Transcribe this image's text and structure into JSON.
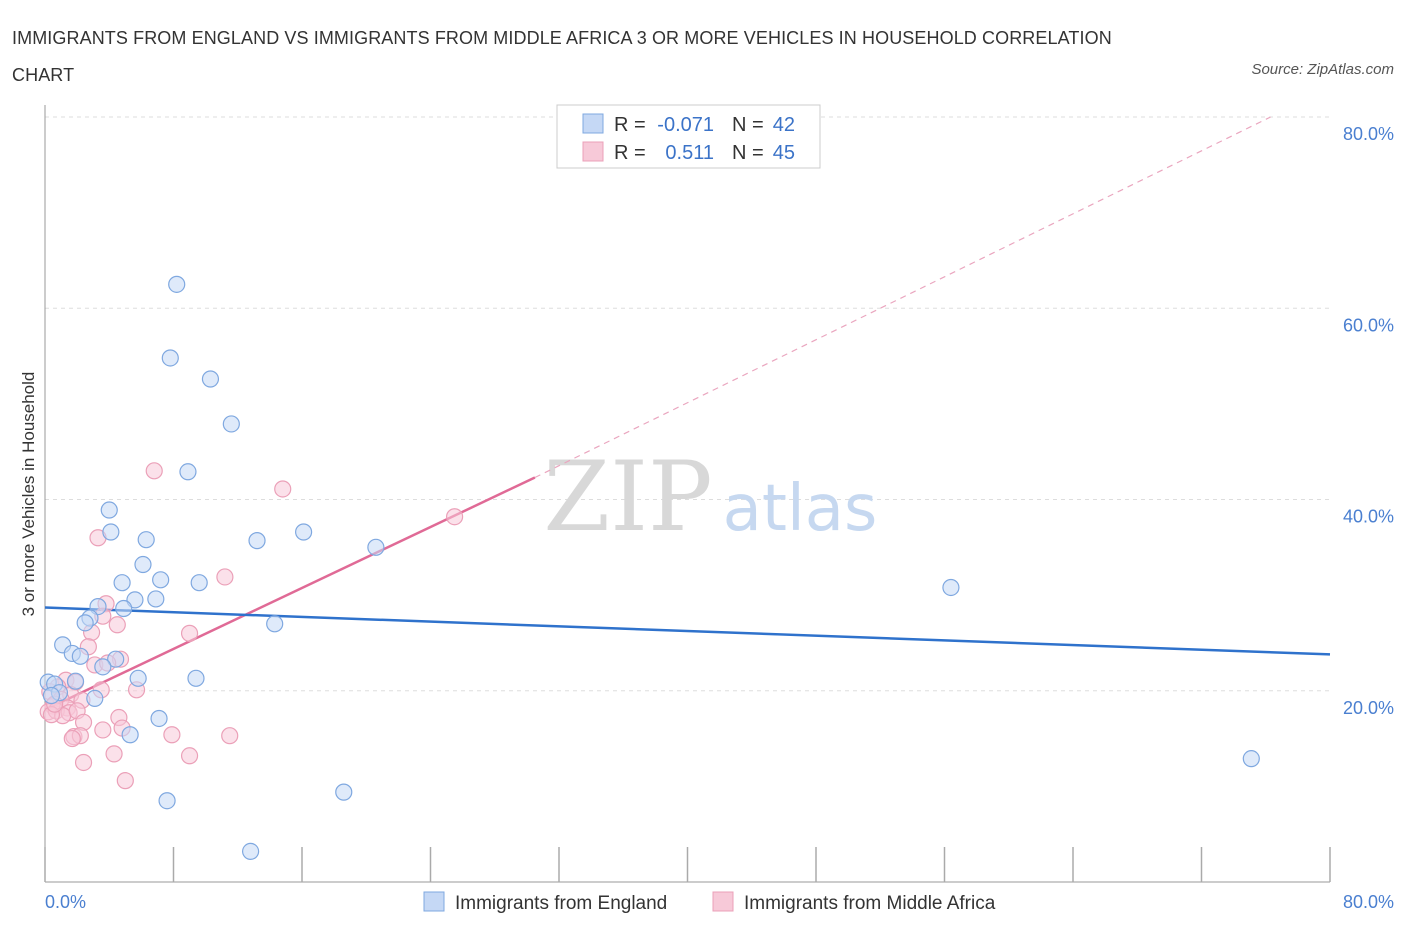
{
  "title": "IMMIGRANTS FROM ENGLAND VS IMMIGRANTS FROM MIDDLE AFRICA 3 OR MORE VEHICLES IN HOUSEHOLD CORRELATION CHART",
  "source": "Source: ZipAtlas.com",
  "watermark": {
    "zip": "ZIP",
    "atlas": "atlas"
  },
  "colors": {
    "england_fill": "#c5d8f5",
    "england_stroke": "#7fa8e0",
    "england_line": "#2f72cc",
    "africa_fill": "#f7c9d8",
    "africa_stroke": "#eba0b8",
    "africa_line": "#e06a96",
    "tick_label": "#4a7fd0",
    "grid": "#dddddd"
  },
  "legend": {
    "england": {
      "r_label": "R =",
      "r_value": "-0.071",
      "n_label": "N =",
      "n_value": "42"
    },
    "africa": {
      "r_label": "R =",
      "r_value": "0.511",
      "n_label": "N =",
      "n_value": "45"
    }
  },
  "bottom_legend": {
    "england": "Immigrants from England",
    "africa": "Immigrants from Middle Africa"
  },
  "chart_data": {
    "type": "scatter",
    "title": "IMMIGRANTS FROM ENGLAND VS IMMIGRANTS FROM MIDDLE AFRICA 3 OR MORE VEHICLES IN HOUSEHOLD CORRELATION CHART",
    "xlabel": "",
    "ylabel": "3 or more Vehicles in Household",
    "xlim": [
      0,
      80
    ],
    "ylim": [
      0,
      80
    ],
    "x_tick_labels": [
      "0.0%",
      "80.0%"
    ],
    "y_ticks": [
      20,
      40,
      60,
      80
    ],
    "y_tick_labels": [
      "20.0%",
      "40.0%",
      "60.0%",
      "80.0%"
    ],
    "series": [
      {
        "name": "Immigrants from England",
        "R": -0.071,
        "N": 42,
        "points": [
          [
            8.2,
            62.5
          ],
          [
            7.8,
            54.8
          ],
          [
            10.3,
            52.6
          ],
          [
            11.6,
            47.9
          ],
          [
            8.9,
            42.9
          ],
          [
            4.0,
            38.9
          ],
          [
            4.1,
            36.6
          ],
          [
            6.3,
            35.8
          ],
          [
            13.2,
            35.7
          ],
          [
            16.1,
            36.6
          ],
          [
            20.6,
            35.0
          ],
          [
            6.1,
            33.2
          ],
          [
            4.8,
            31.3
          ],
          [
            7.2,
            31.6
          ],
          [
            9.6,
            31.3
          ],
          [
            5.6,
            29.5
          ],
          [
            6.9,
            29.6
          ],
          [
            3.3,
            28.8
          ],
          [
            4.9,
            28.6
          ],
          [
            2.8,
            27.6
          ],
          [
            2.5,
            27.1
          ],
          [
            14.3,
            27.0
          ],
          [
            1.1,
            24.8
          ],
          [
            1.7,
            23.9
          ],
          [
            2.2,
            23.6
          ],
          [
            4.4,
            23.3
          ],
          [
            3.6,
            22.5
          ],
          [
            5.8,
            21.3
          ],
          [
            9.4,
            21.3
          ],
          [
            0.2,
            20.9
          ],
          [
            0.6,
            20.7
          ],
          [
            1.9,
            21.0
          ],
          [
            0.9,
            19.8
          ],
          [
            3.1,
            19.2
          ],
          [
            7.1,
            17.1
          ],
          [
            5.3,
            15.4
          ],
          [
            7.6,
            8.5
          ],
          [
            18.6,
            9.4
          ],
          [
            12.8,
            3.2
          ],
          [
            56.4,
            30.8
          ],
          [
            75.1,
            12.9
          ],
          [
            0.4,
            19.5
          ]
        ],
        "trend": {
          "x": [
            0,
            80
          ],
          "y": [
            28.7,
            23.8
          ],
          "style": "solid"
        }
      },
      {
        "name": "Immigrants from Middle Africa",
        "R": 0.511,
        "N": 45,
        "points": [
          [
            6.8,
            43.0
          ],
          [
            14.8,
            41.1
          ],
          [
            25.5,
            38.2
          ],
          [
            3.3,
            36.0
          ],
          [
            11.2,
            31.9
          ],
          [
            3.8,
            29.1
          ],
          [
            3.6,
            27.8
          ],
          [
            4.5,
            26.9
          ],
          [
            2.9,
            26.1
          ],
          [
            9.0,
            26.0
          ],
          [
            2.7,
            24.6
          ],
          [
            4.7,
            23.3
          ],
          [
            3.1,
            22.7
          ],
          [
            3.9,
            22.9
          ],
          [
            1.3,
            21.1
          ],
          [
            1.9,
            20.9
          ],
          [
            0.8,
            20.4
          ],
          [
            3.5,
            20.1
          ],
          [
            5.7,
            20.1
          ],
          [
            0.3,
            19.9
          ],
          [
            1.6,
            19.6
          ],
          [
            2.3,
            19.0
          ],
          [
            1.0,
            19.1
          ],
          [
            0.5,
            18.4
          ],
          [
            1.4,
            18.2
          ],
          [
            0.2,
            17.8
          ],
          [
            0.7,
            17.9
          ],
          [
            1.5,
            17.7
          ],
          [
            1.1,
            17.4
          ],
          [
            2.0,
            17.9
          ],
          [
            0.4,
            17.5
          ],
          [
            4.6,
            17.2
          ],
          [
            2.4,
            16.7
          ],
          [
            4.8,
            16.1
          ],
          [
            3.6,
            15.9
          ],
          [
            1.8,
            15.2
          ],
          [
            2.2,
            15.3
          ],
          [
            1.7,
            15.0
          ],
          [
            7.9,
            15.4
          ],
          [
            11.5,
            15.3
          ],
          [
            4.3,
            13.4
          ],
          [
            9.0,
            13.2
          ],
          [
            2.4,
            12.5
          ],
          [
            5.0,
            10.6
          ],
          [
            0.6,
            18.6
          ]
        ],
        "trend": {
          "x": [
            0,
            30.5
          ],
          "y": [
            18.0,
            42.3
          ],
          "style": "solid"
        },
        "trend_extension": {
          "x": [
            30.5,
            76.3
          ],
          "y": [
            42.3,
            80.0
          ],
          "style": "dashed"
        }
      }
    ]
  }
}
